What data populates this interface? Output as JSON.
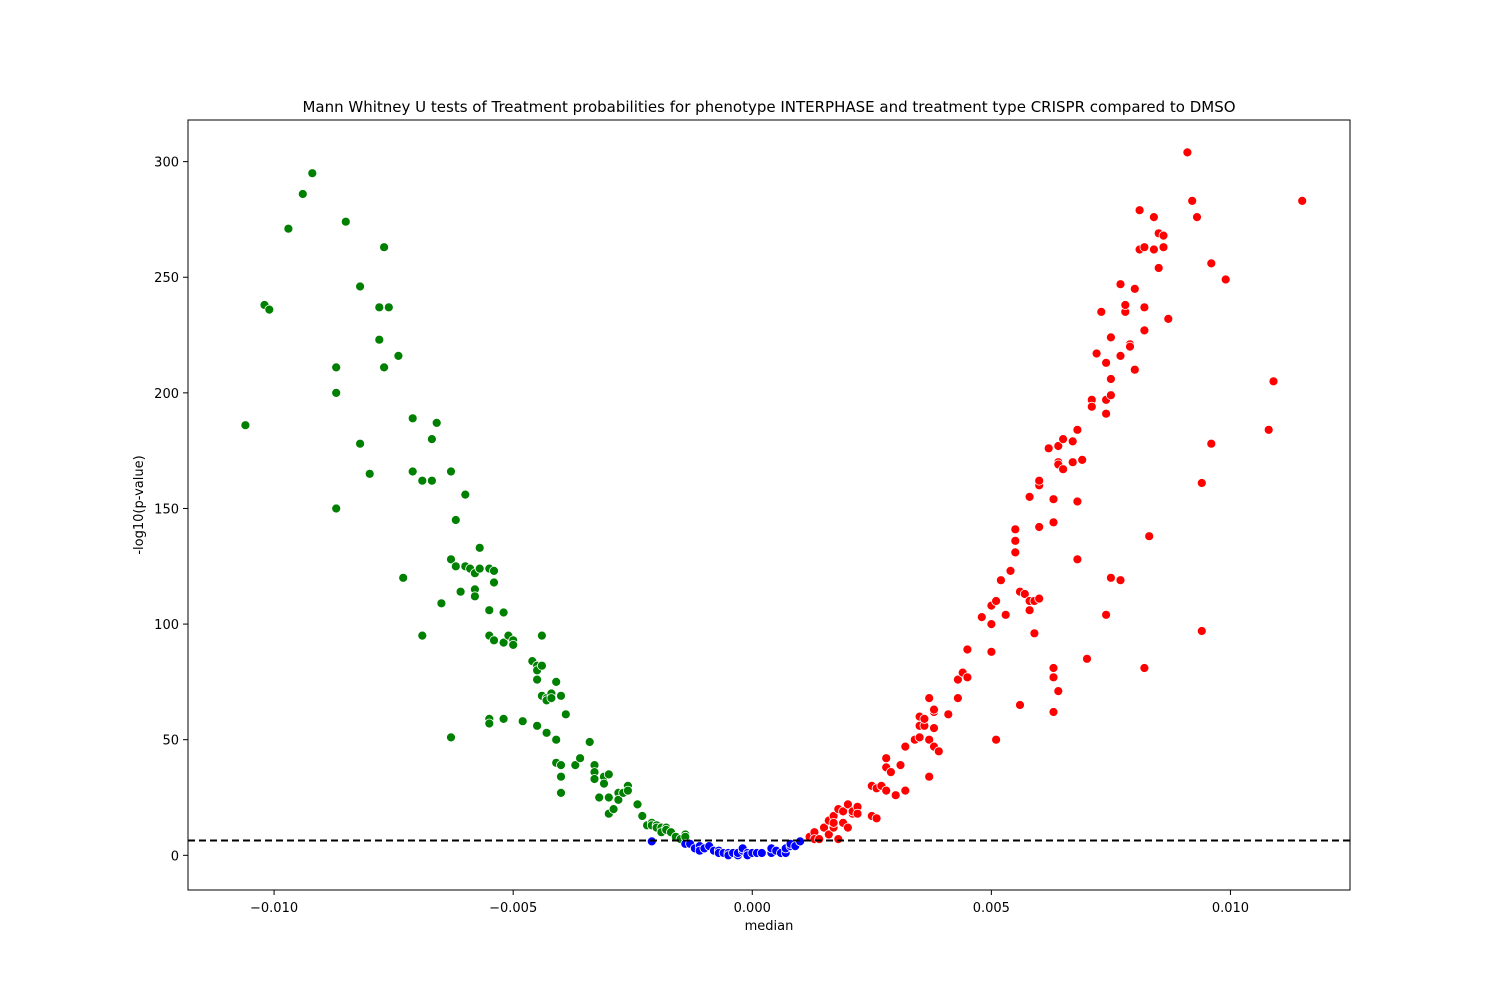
{
  "chart_data": {
    "type": "scatter",
    "title": "Mann Whitney U tests of Treatment probabilities for phenotype INTERPHASE and treatment type CRISPR compared to DMSO",
    "xlabel": "median",
    "ylabel": "-log10(p-value)",
    "xlim": [
      -0.0118,
      0.0125
    ],
    "ylim": [
      -15,
      318
    ],
    "xticks": [
      -0.01,
      -0.005,
      0.0,
      0.005,
      0.01
    ],
    "xtick_labels": [
      "−0.010",
      "−0.005",
      "0.000",
      "0.005",
      "0.010"
    ],
    "yticks": [
      0,
      50,
      100,
      150,
      200,
      250,
      300
    ],
    "ytick_labels": [
      "0",
      "50",
      "100",
      "150",
      "200",
      "250",
      "300"
    ],
    "grid": false,
    "threshold_line": {
      "y": 6.4,
      "style": "dashed",
      "color": "#000000"
    },
    "colors": {
      "down": "#008000",
      "neutral": "#0000ff",
      "up": "#ff0000"
    },
    "series": [
      {
        "color": "#008000",
        "points": [
          [
            -0.0106,
            186
          ],
          [
            -0.0102,
            238
          ],
          [
            -0.0101,
            236
          ],
          [
            -0.0097,
            271
          ],
          [
            -0.0094,
            286
          ],
          [
            -0.0092,
            295
          ],
          [
            -0.0085,
            274
          ],
          [
            -0.0087,
            211
          ],
          [
            -0.0087,
            200
          ],
          [
            -0.0087,
            150
          ],
          [
            -0.0082,
            246
          ],
          [
            -0.0082,
            178
          ],
          [
            -0.008,
            165
          ],
          [
            -0.0078,
            237
          ],
          [
            -0.0078,
            223
          ],
          [
            -0.0077,
            263
          ],
          [
            -0.0076,
            237
          ],
          [
            -0.0077,
            211
          ],
          [
            -0.0074,
            216
          ],
          [
            -0.0073,
            120
          ],
          [
            -0.0071,
            189
          ],
          [
            -0.0071,
            166
          ],
          [
            -0.0069,
            162
          ],
          [
            -0.0069,
            95
          ],
          [
            -0.0067,
            180
          ],
          [
            -0.0067,
            162
          ],
          [
            -0.0066,
            187
          ],
          [
            -0.0065,
            109
          ],
          [
            -0.0063,
            166
          ],
          [
            -0.0063,
            128
          ],
          [
            -0.0063,
            51
          ],
          [
            -0.0062,
            145
          ],
          [
            -0.0062,
            125
          ],
          [
            -0.0061,
            114
          ],
          [
            -0.006,
            156
          ],
          [
            -0.006,
            125
          ],
          [
            -0.0059,
            124
          ],
          [
            -0.0058,
            122
          ],
          [
            -0.0058,
            115
          ],
          [
            -0.0058,
            112
          ],
          [
            -0.0057,
            133
          ],
          [
            -0.0057,
            124
          ],
          [
            -0.0055,
            124
          ],
          [
            -0.0055,
            106
          ],
          [
            -0.0055,
            95
          ],
          [
            -0.0055,
            59
          ],
          [
            -0.0055,
            57
          ],
          [
            -0.0054,
            123
          ],
          [
            -0.0054,
            118
          ],
          [
            -0.0054,
            93
          ],
          [
            -0.0052,
            105
          ],
          [
            -0.0052,
            92
          ],
          [
            -0.0052,
            59
          ],
          [
            -0.0051,
            95
          ],
          [
            -0.005,
            93
          ],
          [
            -0.005,
            91
          ],
          [
            -0.0048,
            58
          ],
          [
            -0.0046,
            84
          ],
          [
            -0.0045,
            82
          ],
          [
            -0.0045,
            80
          ],
          [
            -0.0045,
            76
          ],
          [
            -0.0045,
            56
          ],
          [
            -0.0044,
            95
          ],
          [
            -0.0044,
            82
          ],
          [
            -0.0044,
            69
          ],
          [
            -0.0043,
            68
          ],
          [
            -0.0043,
            67
          ],
          [
            -0.0043,
            53
          ],
          [
            -0.0042,
            70
          ],
          [
            -0.0042,
            68
          ],
          [
            -0.0041,
            75
          ],
          [
            -0.0041,
            50
          ],
          [
            -0.0041,
            40
          ],
          [
            -0.004,
            69
          ],
          [
            -0.004,
            39
          ],
          [
            -0.004,
            34
          ],
          [
            -0.004,
            27
          ],
          [
            -0.0039,
            61
          ],
          [
            -0.0037,
            39
          ],
          [
            -0.0036,
            42
          ],
          [
            -0.0034,
            49
          ],
          [
            -0.0033,
            39
          ],
          [
            -0.0033,
            36
          ],
          [
            -0.0033,
            33
          ],
          [
            -0.0032,
            25
          ],
          [
            -0.0031,
            34
          ],
          [
            -0.0031,
            31
          ],
          [
            -0.003,
            35
          ],
          [
            -0.003,
            25
          ],
          [
            -0.003,
            18
          ],
          [
            -0.0029,
            20
          ],
          [
            -0.0028,
            27
          ],
          [
            -0.0028,
            24
          ],
          [
            -0.0027,
            27
          ],
          [
            -0.0026,
            30
          ],
          [
            -0.0026,
            28
          ],
          [
            -0.0024,
            22
          ],
          [
            -0.0023,
            17
          ],
          [
            -0.0022,
            13
          ],
          [
            -0.0021,
            14
          ],
          [
            -0.0021,
            13
          ],
          [
            -0.002,
            13
          ],
          [
            -0.002,
            12
          ],
          [
            -0.0019,
            12
          ],
          [
            -0.0019,
            10
          ],
          [
            -0.0018,
            12
          ],
          [
            -0.0018,
            11
          ],
          [
            -0.0017,
            10
          ],
          [
            -0.0016,
            8
          ],
          [
            -0.0015,
            7
          ],
          [
            -0.0014,
            9
          ],
          [
            -0.0014,
            8
          ]
        ]
      },
      {
        "color": "#0000ff",
        "points": [
          [
            -0.0021,
            6
          ],
          [
            -0.0014,
            5
          ],
          [
            -0.0013,
            5
          ],
          [
            -0.0012,
            3
          ],
          [
            -0.0011,
            4
          ],
          [
            -0.0011,
            2
          ],
          [
            -0.001,
            3
          ],
          [
            -0.0009,
            4
          ],
          [
            -0.0008,
            2
          ],
          [
            -0.0007,
            2
          ],
          [
            -0.0007,
            1
          ],
          [
            -0.0006,
            1
          ],
          [
            -0.0005,
            1
          ],
          [
            -0.0005,
            0
          ],
          [
            -0.0004,
            1
          ],
          [
            -0.0003,
            0
          ],
          [
            -0.0003,
            1
          ],
          [
            -0.0002,
            2
          ],
          [
            -0.0002,
            3
          ],
          [
            -0.0001,
            1
          ],
          [
            -0.0001,
            0
          ],
          [
            0.0,
            1
          ],
          [
            0.0001,
            1
          ],
          [
            0.0002,
            1
          ],
          [
            0.0004,
            1
          ],
          [
            0.0004,
            3
          ],
          [
            0.0005,
            2
          ],
          [
            0.0006,
            1
          ],
          [
            0.0007,
            1
          ],
          [
            0.0007,
            3
          ],
          [
            0.0008,
            4
          ],
          [
            0.0008,
            5
          ],
          [
            0.0009,
            4
          ],
          [
            0.001,
            6
          ]
        ]
      },
      {
        "color": "#ff0000",
        "points": [
          [
            0.0012,
            8
          ],
          [
            0.0013,
            10
          ],
          [
            0.0013,
            7
          ],
          [
            0.0014,
            7
          ],
          [
            0.0015,
            12
          ],
          [
            0.0016,
            15
          ],
          [
            0.0016,
            9
          ],
          [
            0.0017,
            17
          ],
          [
            0.0017,
            12
          ],
          [
            0.0017,
            14
          ],
          [
            0.0018,
            20
          ],
          [
            0.0018,
            7
          ],
          [
            0.0019,
            19
          ],
          [
            0.0019,
            14
          ],
          [
            0.002,
            22
          ],
          [
            0.002,
            12
          ],
          [
            0.0021,
            18
          ],
          [
            0.0021,
            19
          ],
          [
            0.0022,
            21
          ],
          [
            0.0022,
            18
          ],
          [
            0.0025,
            17
          ],
          [
            0.0025,
            30
          ],
          [
            0.0026,
            16
          ],
          [
            0.0026,
            29
          ],
          [
            0.0027,
            30
          ],
          [
            0.0028,
            28
          ],
          [
            0.0028,
            38
          ],
          [
            0.0028,
            42
          ],
          [
            0.0029,
            36
          ],
          [
            0.003,
            26
          ],
          [
            0.0031,
            39
          ],
          [
            0.0032,
            28
          ],
          [
            0.0032,
            47
          ],
          [
            0.0034,
            50
          ],
          [
            0.0035,
            51
          ],
          [
            0.0035,
            56
          ],
          [
            0.0035,
            60
          ],
          [
            0.0036,
            56
          ],
          [
            0.0036,
            59
          ],
          [
            0.0037,
            50
          ],
          [
            0.0037,
            34
          ],
          [
            0.0037,
            68
          ],
          [
            0.0038,
            62
          ],
          [
            0.0038,
            63
          ],
          [
            0.0038,
            55
          ],
          [
            0.0038,
            47
          ],
          [
            0.0039,
            45
          ],
          [
            0.0041,
            61
          ],
          [
            0.0043,
            68
          ],
          [
            0.0043,
            76
          ],
          [
            0.0044,
            79
          ],
          [
            0.0045,
            77
          ],
          [
            0.0045,
            89
          ],
          [
            0.0048,
            103
          ],
          [
            0.005,
            108
          ],
          [
            0.005,
            100
          ],
          [
            0.005,
            88
          ],
          [
            0.0051,
            110
          ],
          [
            0.0051,
            50
          ],
          [
            0.0052,
            119
          ],
          [
            0.0053,
            104
          ],
          [
            0.0054,
            123
          ],
          [
            0.0055,
            131
          ],
          [
            0.0055,
            136
          ],
          [
            0.0055,
            141
          ],
          [
            0.0056,
            114
          ],
          [
            0.0056,
            65
          ],
          [
            0.0057,
            113
          ],
          [
            0.0058,
            110
          ],
          [
            0.0058,
            106
          ],
          [
            0.0058,
            155
          ],
          [
            0.0059,
            96
          ],
          [
            0.0059,
            110
          ],
          [
            0.006,
            160
          ],
          [
            0.006,
            162
          ],
          [
            0.006,
            142
          ],
          [
            0.006,
            111
          ],
          [
            0.0062,
            176
          ],
          [
            0.0063,
            144
          ],
          [
            0.0063,
            154
          ],
          [
            0.0063,
            81
          ],
          [
            0.0063,
            77
          ],
          [
            0.0063,
            62
          ],
          [
            0.0064,
            170
          ],
          [
            0.0064,
            169
          ],
          [
            0.0064,
            177
          ],
          [
            0.0064,
            71
          ],
          [
            0.0065,
            167
          ],
          [
            0.0065,
            180
          ],
          [
            0.0067,
            170
          ],
          [
            0.0067,
            179
          ],
          [
            0.0068,
            184
          ],
          [
            0.0068,
            153
          ],
          [
            0.0068,
            128
          ],
          [
            0.0069,
            171
          ],
          [
            0.007,
            85
          ],
          [
            0.0071,
            197
          ],
          [
            0.0071,
            194
          ],
          [
            0.0072,
            217
          ],
          [
            0.0073,
            235
          ],
          [
            0.0074,
            104
          ],
          [
            0.0074,
            191
          ],
          [
            0.0074,
            197
          ],
          [
            0.0074,
            213
          ],
          [
            0.0075,
            224
          ],
          [
            0.0075,
            206
          ],
          [
            0.0075,
            199
          ],
          [
            0.0075,
            120
          ],
          [
            0.0077,
            247
          ],
          [
            0.0077,
            216
          ],
          [
            0.0077,
            119
          ],
          [
            0.0078,
            235
          ],
          [
            0.0078,
            238
          ],
          [
            0.0079,
            221
          ],
          [
            0.0079,
            220
          ],
          [
            0.008,
            210
          ],
          [
            0.008,
            245
          ],
          [
            0.0081,
            279
          ],
          [
            0.0081,
            262
          ],
          [
            0.0082,
            263
          ],
          [
            0.0082,
            227
          ],
          [
            0.0082,
            237
          ],
          [
            0.0082,
            81
          ],
          [
            0.0083,
            138
          ],
          [
            0.0084,
            262
          ],
          [
            0.0084,
            276
          ],
          [
            0.0085,
            254
          ],
          [
            0.0085,
            269
          ],
          [
            0.0086,
            268
          ],
          [
            0.0086,
            263
          ],
          [
            0.0087,
            232
          ],
          [
            0.0091,
            304
          ],
          [
            0.0092,
            283
          ],
          [
            0.0093,
            276
          ],
          [
            0.0094,
            161
          ],
          [
            0.0094,
            97
          ],
          [
            0.0096,
            256
          ],
          [
            0.0096,
            178
          ],
          [
            0.0099,
            249
          ],
          [
            0.0108,
            184
          ],
          [
            0.0109,
            205
          ],
          [
            0.0115,
            283
          ]
        ]
      }
    ]
  }
}
